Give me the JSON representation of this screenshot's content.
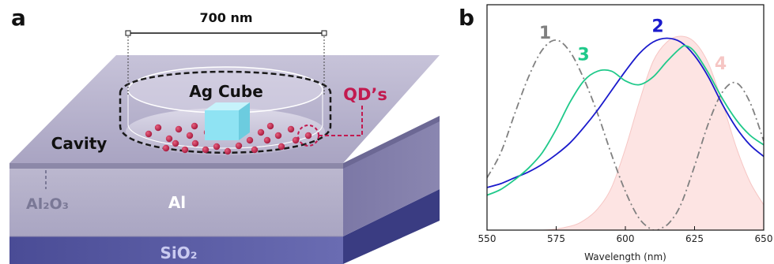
{
  "panel_a": {
    "letter": "a",
    "scale_label": "700 nm",
    "ag_cube": "Ag Cube",
    "qds": "QD’s",
    "cavity": "Cavity",
    "al2o3": "Al₂O₃",
    "al": "Al",
    "sio2": "SiO₂"
  },
  "panel_b": {
    "letter": "b"
  },
  "chart_data": {
    "type": "line",
    "xlabel": "Wavelength (nm)",
    "ylabel": "",
    "xlim": [
      550,
      650
    ],
    "ylim": [
      0,
      1
    ],
    "xticks": [
      550,
      575,
      600,
      625,
      650
    ],
    "grid": false,
    "yticks_shown": false,
    "series": [
      {
        "name": "1",
        "color": "#808080",
        "style": "dash-dot",
        "x": [
          550,
          555,
          560,
          565,
          570,
          575,
          580,
          585,
          590,
          595,
          600,
          605,
          610,
          613,
          616,
          620,
          625,
          630,
          635,
          640,
          645,
          650
        ],
        "y": [
          0.27,
          0.4,
          0.6,
          0.79,
          0.93,
          0.98,
          0.92,
          0.78,
          0.6,
          0.39,
          0.2,
          0.06,
          0.0,
          0.01,
          0.04,
          0.13,
          0.33,
          0.55,
          0.71,
          0.76,
          0.66,
          0.46
        ]
      },
      {
        "name": "2",
        "color": "#1a1acc",
        "style": "solid",
        "x": [
          550,
          555,
          560,
          565,
          570,
          575,
          580,
          585,
          590,
          595,
          600,
          605,
          610,
          615,
          620,
          625,
          630,
          635,
          640,
          645,
          650
        ],
        "y": [
          0.22,
          0.24,
          0.27,
          0.3,
          0.34,
          0.39,
          0.45,
          0.53,
          0.62,
          0.72,
          0.82,
          0.91,
          0.97,
          0.99,
          0.97,
          0.9,
          0.79,
          0.65,
          0.53,
          0.44,
          0.38
        ]
      },
      {
        "name": "3",
        "color": "#1fc98a",
        "style": "solid",
        "x": [
          550,
          555,
          560,
          565,
          570,
          575,
          580,
          585,
          590,
          595,
          600,
          605,
          610,
          615,
          620,
          622,
          625,
          630,
          635,
          640,
          645,
          650
        ],
        "y": [
          0.18,
          0.21,
          0.26,
          0.32,
          0.4,
          0.52,
          0.66,
          0.77,
          0.82,
          0.82,
          0.77,
          0.75,
          0.79,
          0.87,
          0.94,
          0.95,
          0.92,
          0.81,
          0.68,
          0.57,
          0.49,
          0.44
        ]
      },
      {
        "name": "4",
        "color": "#f6c6c4",
        "style": "filled",
        "x": [
          550,
          570,
          580,
          585,
          590,
          595,
          600,
          605,
          610,
          615,
          620,
          625,
          630,
          635,
          640,
          645,
          650
        ],
        "y": [
          0.0,
          0.0,
          0.02,
          0.05,
          0.11,
          0.22,
          0.42,
          0.66,
          0.87,
          0.97,
          1.0,
          0.97,
          0.86,
          0.66,
          0.43,
          0.25,
          0.13
        ]
      }
    ]
  }
}
